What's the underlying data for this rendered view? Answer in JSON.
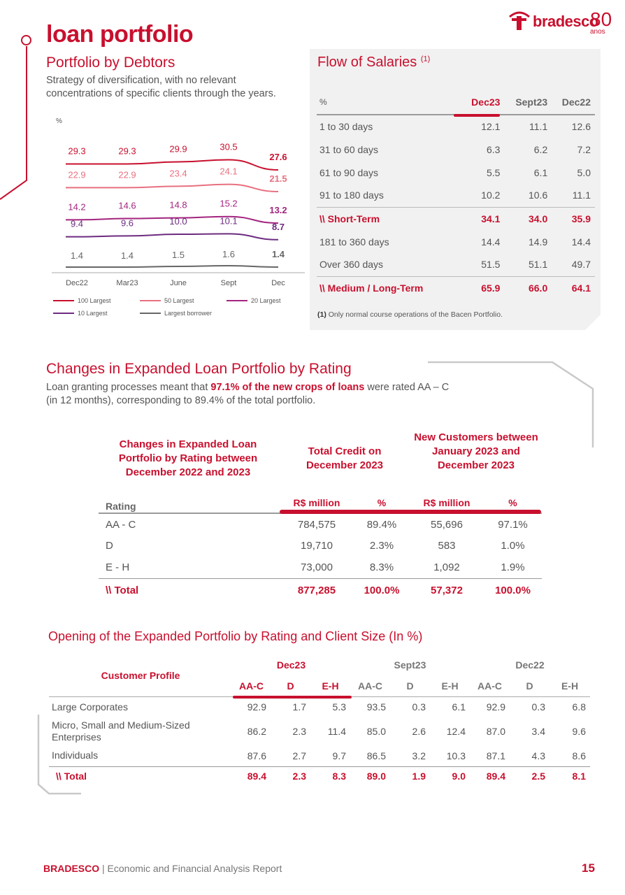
{
  "header": {
    "title": "loan portfolio",
    "logo_text": "bradesco",
    "logo_number": "80",
    "logo_sub": "anos"
  },
  "debtors": {
    "title": "Portfolio by Debtors",
    "desc_line1": "Strategy of diversification, with no relevant",
    "desc_line2": "concentrations of specific clients through the years."
  },
  "chart_data": {
    "type": "line",
    "ylabel": "%",
    "categories": [
      "Dec22",
      "Mar23",
      "June",
      "Sept",
      "Dec"
    ],
    "series": [
      {
        "name": "100 Largest",
        "values": [
          29.3,
          29.3,
          29.9,
          30.5,
          27.6
        ],
        "color": "#c8102e"
      },
      {
        "name": "50 Largest",
        "values": [
          22.9,
          22.9,
          23.4,
          24.1,
          21.5
        ],
        "color": "#e8707f"
      },
      {
        "name": "20 Largest",
        "values": [
          14.2,
          14.6,
          14.8,
          15.2,
          13.2
        ],
        "color": "#a3247f"
      },
      {
        "name": "10 Largest",
        "values": [
          9.4,
          9.6,
          10.0,
          10.1,
          8.7
        ],
        "color": "#6d2b80"
      },
      {
        "name": "Largest borrower",
        "values": [
          1.4,
          1.4,
          1.5,
          1.6,
          1.4
        ],
        "color": "#666666"
      }
    ],
    "labels": [
      [
        "29.3",
        "29.3",
        "29.9",
        "30.5",
        "27.6"
      ],
      [
        "22.9",
        "22.9",
        "23.4",
        "24.1",
        "21.5"
      ],
      [
        "14.2",
        "14.6",
        "14.8",
        "15.2",
        "13.2"
      ],
      [
        "9.4",
        "9.6",
        "10.0",
        "10.1",
        "8.7"
      ],
      [
        "1.4",
        "1.4",
        "1.5",
        "1.6",
        "1.4"
      ]
    ]
  },
  "salaries": {
    "title": "Flow of Salaries",
    "title_sup": "(1)",
    "col_label": "%",
    "columns": [
      "Dec23",
      "Sept23",
      "Dec22"
    ],
    "rows": [
      {
        "label": "1 to 30 days",
        "v": [
          "12.1",
          "11.1",
          "12.6"
        ]
      },
      {
        "label": "31 to 60 days",
        "v": [
          "6.3",
          "6.2",
          "7.2"
        ]
      },
      {
        "label": "61 to 90 days",
        "v": [
          "5.5",
          "6.1",
          "5.0"
        ]
      },
      {
        "label": "91 to 180 days",
        "v": [
          "10.2",
          "10.6",
          "11.1"
        ]
      },
      {
        "label": "\\\\ Short-Term",
        "v": [
          "34.1",
          "34.0",
          "35.9"
        ]
      },
      {
        "label": "181 to 360 days",
        "v": [
          "14.4",
          "14.9",
          "14.4"
        ]
      },
      {
        "label": "Over 360 days",
        "v": [
          "51.5",
          "51.1",
          "49.7"
        ]
      },
      {
        "label": "\\\\ Medium / Long-Term",
        "v": [
          "65.9",
          "66.0",
          "64.1"
        ]
      }
    ],
    "note_num": "(1)",
    "note_text": "Only normal course operations of the Bacen Portfolio."
  },
  "rating": {
    "title": "Changes in Expanded Loan Portfolio by Rating",
    "desc_pre": "Loan granting processes meant that ",
    "desc_bold": "97.1% of the new crops of loans",
    "desc_post": " were rated AA – C",
    "desc_line2": "(in 12 months), corresponding to 89.4% of the total portfolio.",
    "head_col1": "Changes in Expanded Loan Portfolio by Rating between December 2022 and 2023",
    "head_col2": "Total Credit on December 2023",
    "head_col3": "New Customers between January 2023 and December 2023",
    "sub_rating": "Rating",
    "sub_rs1": "R$ million",
    "sub_pct1": "%",
    "sub_rs2": "R$ million",
    "sub_pct2": "%",
    "rows": [
      {
        "r": "AA - C",
        "a": "784,575",
        "b": "89.4%",
        "c": "55,696",
        "d": "97.1%"
      },
      {
        "r": "D",
        "a": "19,710",
        "b": "2.3%",
        "c": "583",
        "d": "1.0%"
      },
      {
        "r": "E - H",
        "a": "73,000",
        "b": "8.3%",
        "c": "1,092",
        "d": "1.9%"
      }
    ],
    "total": {
      "r": "\\\\ Total",
      "a": "877,285",
      "b": "100.0%",
      "c": "57,372",
      "d": "100.0%"
    }
  },
  "opening": {
    "title": "Opening of the Expanded Portfolio by Rating and Client Size (In %)",
    "profile_label": "Customer Profile",
    "periods": [
      "Dec23",
      "Sept23",
      "Dec22"
    ],
    "subcols": [
      "AA-C",
      "D",
      "E-H"
    ],
    "rows": [
      {
        "label": "Large Corporates",
        "v": [
          "92.9",
          "1.7",
          "5.3",
          "93.5",
          "0.3",
          "6.1",
          "92.9",
          "0.3",
          "6.8"
        ]
      },
      {
        "label": "Micro, Small and Medium-Sized Enterprises",
        "v": [
          "86.2",
          "2.3",
          "11.4",
          "85.0",
          "2.6",
          "12.4",
          "87.0",
          "3.4",
          "9.6"
        ]
      },
      {
        "label": "Individuals",
        "v": [
          "87.6",
          "2.7",
          "9.7",
          "86.5",
          "3.2",
          "10.3",
          "87.1",
          "4.3",
          "8.6"
        ]
      }
    ],
    "total": {
      "label": "\\\\ Total",
      "v": [
        "89.4",
        "2.3",
        "8.3",
        "89.0",
        "1.9",
        "9.0",
        "89.4",
        "2.5",
        "8.1"
      ]
    }
  },
  "footer": {
    "brand": "BRADESCO",
    "sep": " | ",
    "text": "Economic and Financial Analysis Report",
    "page": "15"
  }
}
